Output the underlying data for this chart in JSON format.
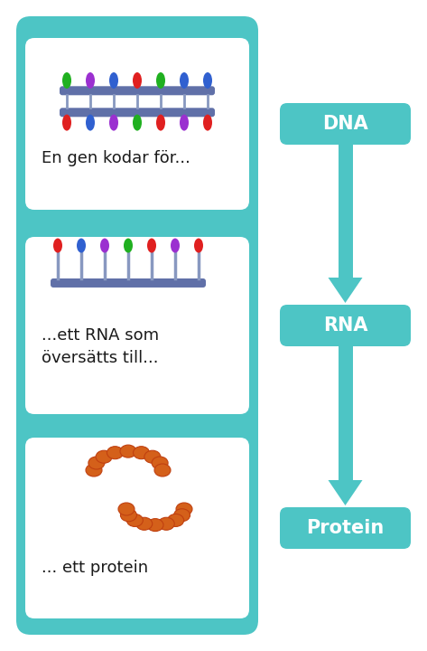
{
  "bg_color": "#ffffff",
  "teal": "#4dc5c5",
  "white": "#ffffff",
  "text_color": "#1a1a1a",
  "label_color": "#ffffff",
  "label_dna": "DNA",
  "label_rna": "RNA",
  "label_protein": "Protein",
  "text1": "En gen kodar för...",
  "text2": "...ett RNA som\növersätts till...",
  "text3": "... ett protein",
  "dna_rung_colors_top": [
    "#20b020",
    "#9b30d0",
    "#3060d0",
    "#e02020",
    "#20b020",
    "#3060d0",
    "#3060d0"
  ],
  "dna_rung_colors_bot": [
    "#e02020",
    "#3060d0",
    "#9b30d0",
    "#20b020",
    "#e02020",
    "#9b30d0",
    "#e02020"
  ],
  "rna_colors": [
    "#e02020",
    "#3060d0",
    "#9b30d0",
    "#20b020",
    "#e02020",
    "#9b30d0",
    "#e02020"
  ],
  "protein_color": "#d4601a",
  "protein_edge": "#c04010"
}
